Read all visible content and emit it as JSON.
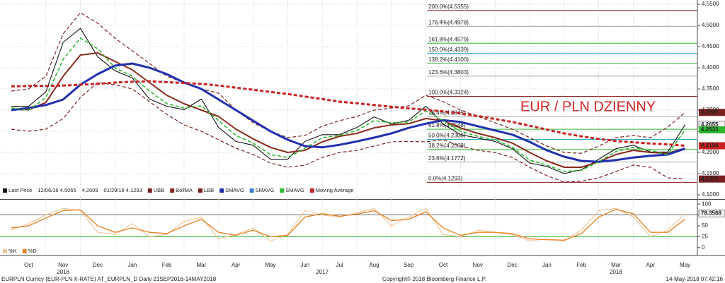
{
  "chart_data": [
    {
      "type": "line",
      "title": "EUR / PLN DZIENNY",
      "categories": [
        null,
        "Oct",
        null,
        "Nov",
        null,
        "Dec",
        null,
        "Jan",
        null,
        "Feb",
        null,
        "Mar",
        null,
        "Apr",
        null,
        "May",
        null,
        "Jun",
        null,
        "Jul",
        null,
        "Aug",
        null,
        "Sep",
        null,
        "Oct",
        null,
        "Nov",
        null,
        "Dec",
        null,
        "Jan",
        null,
        "Feb",
        null,
        "Mar",
        null,
        "Apr",
        null,
        "May"
      ],
      "year_labels": [
        "2016",
        "2017",
        "2018"
      ],
      "ylim": [
        4.09,
        4.56
      ],
      "yticks": [
        {
          "value": 4.1,
          "label": "4.1000"
        },
        {
          "value": 4.15,
          "label": "4.1500"
        },
        {
          "value": 4.2,
          "label": "4.2000"
        },
        {
          "value": 4.25,
          "label": "4.2500"
        },
        {
          "value": 4.3,
          "label": "4.3000"
        },
        {
          "value": 4.35,
          "label": "4.3500"
        },
        {
          "value": 4.4,
          "label": "4.4000"
        },
        {
          "value": 4.45,
          "label": "4.4500"
        },
        {
          "value": 4.5,
          "label": "4.5000"
        },
        {
          "value": 4.55,
          "label": "4.5500"
        }
      ],
      "grid": true,
      "price_notes": [
        "12/06/16  4.5065",
        "4.2609",
        "01/29/18  4.1293"
      ],
      "series": [
        {
          "name": "Last Price",
          "color": "#111111",
          "dash": false,
          "tag": true,
          "values": [
            4.309,
            4.309,
            4.343,
            4.46,
            4.493,
            4.426,
            4.393,
            4.376,
            4.326,
            4.309,
            4.301,
            4.326,
            4.259,
            4.226,
            4.217,
            4.184,
            4.184,
            4.226,
            4.242,
            4.242,
            4.259,
            4.284,
            4.267,
            4.276,
            4.309,
            4.267,
            4.242,
            4.234,
            4.226,
            4.209,
            4.175,
            4.167,
            4.15,
            4.159,
            4.184,
            4.209,
            4.217,
            4.201,
            4.201,
            4.2655
          ]
        },
        {
          "name": "UBB",
          "color": "#7a1f1f",
          "dash": true,
          "tag": true,
          "values": [
            4.345,
            4.35,
            4.38,
            4.48,
            4.53,
            4.505,
            4.47,
            4.44,
            4.41,
            4.38,
            4.365,
            4.35,
            4.34,
            4.3,
            4.27,
            4.25,
            4.235,
            4.24,
            4.262,
            4.275,
            4.285,
            4.3,
            4.305,
            4.31,
            4.335,
            4.32,
            4.3,
            4.285,
            4.27,
            4.255,
            4.235,
            4.215,
            4.2,
            4.198,
            4.215,
            4.235,
            4.24,
            4.235,
            4.26,
            4.2945
          ]
        },
        {
          "name": "BollMA",
          "color": "#8b2a1a",
          "dash": false,
          "tag": false,
          "values": [
            4.301,
            4.301,
            4.318,
            4.38,
            4.43,
            4.435,
            4.415,
            4.395,
            4.365,
            4.335,
            4.315,
            4.3,
            4.285,
            4.255,
            4.232,
            4.212,
            4.2,
            4.205,
            4.225,
            4.238,
            4.245,
            4.258,
            4.265,
            4.268,
            4.28,
            4.275,
            4.258,
            4.245,
            4.235,
            4.222,
            4.2,
            4.18,
            4.165,
            4.165,
            4.178,
            4.195,
            4.205,
            4.2,
            4.198,
            4.21
          ]
        },
        {
          "name": "LBB",
          "color": "#7a1f1f",
          "dash": true,
          "tag": true,
          "values": [
            4.255,
            4.25,
            4.255,
            4.28,
            4.33,
            4.365,
            4.36,
            4.35,
            4.32,
            4.29,
            4.265,
            4.25,
            4.23,
            4.21,
            4.195,
            4.175,
            4.165,
            4.17,
            4.188,
            4.2,
            4.205,
            4.215,
            4.225,
            4.226,
            4.225,
            4.23,
            4.215,
            4.205,
            4.2,
            4.188,
            4.165,
            4.145,
            4.13,
            4.132,
            4.14,
            4.155,
            4.17,
            4.165,
            4.14,
            4.1372
          ]
        },
        {
          "name": "SMAVG",
          "color": "#1f2fb0",
          "dash": false,
          "tag": false,
          "values": [
            4.3,
            4.305,
            4.312,
            4.325,
            4.36,
            4.385,
            4.405,
            4.41,
            4.4,
            4.385,
            4.365,
            4.35,
            4.325,
            4.3,
            4.275,
            4.25,
            4.23,
            4.215,
            4.212,
            4.218,
            4.226,
            4.235,
            4.245,
            4.258,
            4.268,
            4.276,
            4.272,
            4.262,
            4.252,
            4.242,
            4.225,
            4.205,
            4.19,
            4.18,
            4.178,
            4.182,
            4.188,
            4.192,
            4.195,
            4.209
          ]
        },
        {
          "name": "SMAVG",
          "color": "#3a7fd0",
          "dash": false,
          "tag": false,
          "values": [
            null,
            null,
            null,
            null,
            null,
            null,
            null,
            null,
            null,
            null,
            null,
            null,
            null,
            null,
            null,
            null,
            null,
            null,
            null,
            null,
            null,
            null,
            null,
            null,
            null,
            null,
            null,
            null,
            null,
            null,
            null,
            null,
            null,
            null,
            null,
            null,
            null,
            null,
            null,
            null
          ]
        },
        {
          "name": "SMAVG",
          "color": "#2db82d",
          "dash": true,
          "tag": true,
          "values": [
            4.305,
            4.3,
            4.33,
            4.42,
            4.47,
            4.445,
            4.4,
            4.38,
            4.345,
            4.315,
            4.305,
            4.31,
            4.275,
            4.24,
            4.222,
            4.195,
            4.188,
            4.21,
            4.235,
            4.24,
            4.252,
            4.275,
            4.27,
            4.272,
            4.298,
            4.275,
            4.25,
            4.238,
            4.23,
            4.212,
            4.182,
            4.17,
            4.155,
            4.158,
            4.178,
            4.202,
            4.212,
            4.205,
            4.195,
            4.2533
          ]
        },
        {
          "name": "Moving Average",
          "color": "#cc1f1f",
          "dash": true,
          "tag": true,
          "values": [
            4.356,
            4.357,
            4.357,
            4.358,
            4.36,
            4.362,
            4.365,
            4.367,
            4.368,
            4.366,
            4.364,
            4.362,
            4.358,
            4.353,
            4.348,
            4.343,
            4.338,
            4.332,
            4.326,
            4.32,
            4.316,
            4.312,
            4.308,
            4.304,
            4.301,
            4.297,
            4.292,
            4.286,
            4.279,
            4.272,
            4.263,
            4.254,
            4.245,
            4.238,
            4.232,
            4.227,
            4.224,
            4.221,
            4.219,
            4.2158
          ]
        }
      ],
      "fib_levels": [
        {
          "label": "200.0%(4.5355)",
          "value": 4.5355,
          "color": "#8b1a1a"
        },
        {
          "label": "176.4%(4.4978)",
          "value": 4.4978,
          "color": "#aaaaaa"
        },
        {
          "label": "161.8%(4.4579)",
          "value": 4.4579,
          "color": "#2db82d"
        },
        {
          "label": "150.0%(4.4339)",
          "value": 4.4339,
          "color": "#22aacc"
        },
        {
          "label": "138.2%(4.4100)",
          "value": 4.41,
          "color": "#2db82d"
        },
        {
          "label": "123.6%(4.3803)",
          "value": 4.3803,
          "color": "#aaaaaa"
        },
        {
          "label": "100.0%(4.3324)",
          "value": 4.3324,
          "color": "#8b1a1a"
        },
        {
          "label": "76.4%(4.2845)",
          "value": 4.2845,
          "color": "#aaaaaa"
        },
        {
          "label": "61.8%(4.2548)",
          "value": 4.2548,
          "color": "#2db82d"
        },
        {
          "label": "50.0%(4.2308)",
          "value": 4.2308,
          "color": "#22aacc"
        },
        {
          "label": "38.2%(4.2069)",
          "value": 4.2069,
          "color": "#2db82d"
        },
        {
          "label": "23.6%(4.1772)",
          "value": 4.1772,
          "color": "#aaaaaa"
        },
        {
          "label": "0.0%(4.1293)",
          "value": 4.1293,
          "color": "#8b1a1a"
        }
      ]
    },
    {
      "type": "line",
      "ylim": [
        -15,
        110
      ],
      "yticks": [
        0,
        25,
        50,
        75,
        100
      ],
      "levels": [
        {
          "value": 75,
          "color": "#666666"
        },
        {
          "value": 25,
          "color": "#2db82d"
        }
      ],
      "series": [
        {
          "name": "%K",
          "color": "#f3c49a",
          "dash": false,
          "tag": true,
          "values": [
            40,
            55,
            75,
            90,
            85,
            35,
            30,
            55,
            25,
            30,
            60,
            70,
            20,
            30,
            45,
            15,
            30,
            85,
            75,
            70,
            80,
            90,
            50,
            70,
            90,
            30,
            25,
            40,
            35,
            30,
            15,
            20,
            15,
            40,
            85,
            90,
            70,
            25,
            40,
            78.3568
          ]
        },
        {
          "name": "%D",
          "color": "#e8862a",
          "dash": false,
          "tag": false,
          "values": [
            45,
            50,
            68,
            85,
            87,
            50,
            35,
            45,
            35,
            32,
            50,
            65,
            35,
            28,
            40,
            25,
            28,
            70,
            78,
            72,
            77,
            85,
            62,
            65,
            82,
            45,
            28,
            35,
            35,
            32,
            20,
            18,
            17,
            32,
            70,
            88,
            78,
            35,
            35,
            65
          ]
        }
      ]
    }
  ],
  "footer": {
    "left": "EURPLN Curncy (EUR-PLN X-RATE) AT_EURPLN_D  Daily 21SEP2016-14MAY2018",
    "center": "Copyright© 2018 Bloomberg Finance L.P.",
    "right": "14-May-2018 07:42:16"
  }
}
